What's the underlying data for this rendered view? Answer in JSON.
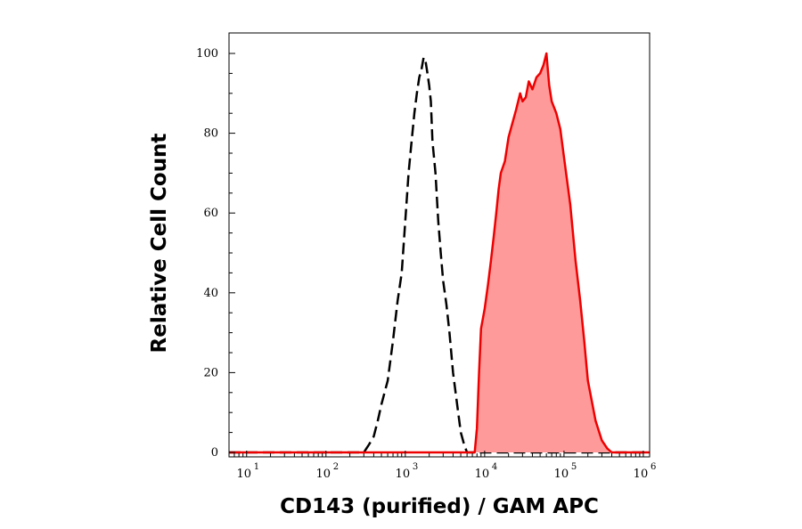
{
  "chart_data": {
    "type": "area",
    "title": "",
    "xlabel": "CD143 (purified) / GAM APC",
    "ylabel": "Relative Cell Count",
    "x_scale": "log",
    "xlim": [
      6,
      1200000
    ],
    "ylim": [
      0,
      100
    ],
    "x_ticks": [
      {
        "value": 10,
        "base": "10",
        "exp": "1"
      },
      {
        "value": 100,
        "base": "10",
        "exp": "2"
      },
      {
        "value": 1000,
        "base": "10",
        "exp": "3"
      },
      {
        "value": 10000,
        "base": "10",
        "exp": "4"
      },
      {
        "value": 100000,
        "base": "10",
        "exp": "5"
      },
      {
        "value": 1000000,
        "base": "10",
        "exp": "6"
      }
    ],
    "y_ticks": [
      0,
      20,
      40,
      60,
      80,
      100
    ],
    "grid": false,
    "legend": "none",
    "series": [
      {
        "style": "dashed-line",
        "color": "#000000",
        "fill": "none",
        "x": [
          6,
          300,
          350,
          400,
          450,
          500,
          600,
          700,
          800,
          900,
          1000,
          1100,
          1200,
          1300,
          1400,
          1500,
          1600,
          1700,
          1800,
          1900,
          2000,
          2100,
          2200,
          2400,
          2600,
          2800,
          3000,
          3300,
          3600,
          4000,
          4500,
          5000,
          5500,
          6000,
          1200000
        ],
        "y": [
          0,
          0,
          2,
          4,
          8,
          12,
          18,
          28,
          38,
          45,
          58,
          70,
          78,
          85,
          90,
          94,
          96,
          99,
          98,
          95,
          92,
          88,
          78,
          70,
          58,
          50,
          43,
          37,
          30,
          20,
          12,
          5,
          2,
          0,
          0
        ]
      },
      {
        "style": "solid-line-filled",
        "color": "#ee0000",
        "fill": "#ff9a9a",
        "x": [
          6,
          7500,
          8000,
          8500,
          9000,
          10000,
          11000,
          12000,
          13000,
          14000,
          15000,
          16000,
          18000,
          20000,
          22000,
          25000,
          28000,
          30000,
          33000,
          36000,
          40000,
          45000,
          50000,
          55000,
          60000,
          65000,
          70000,
          80000,
          90000,
          100000,
          120000,
          140000,
          160000,
          180000,
          200000,
          250000,
          300000,
          350000,
          400000,
          500000,
          1200000
        ],
        "y": [
          0,
          0,
          6,
          20,
          31,
          36,
          42,
          48,
          54,
          60,
          66,
          70,
          73,
          79,
          82,
          86,
          90,
          88,
          89,
          93,
          91,
          94,
          95,
          97,
          100,
          92,
          88,
          85,
          81,
          74,
          62,
          48,
          38,
          28,
          18,
          8,
          3,
          1,
          0,
          0,
          0
        ]
      }
    ]
  }
}
